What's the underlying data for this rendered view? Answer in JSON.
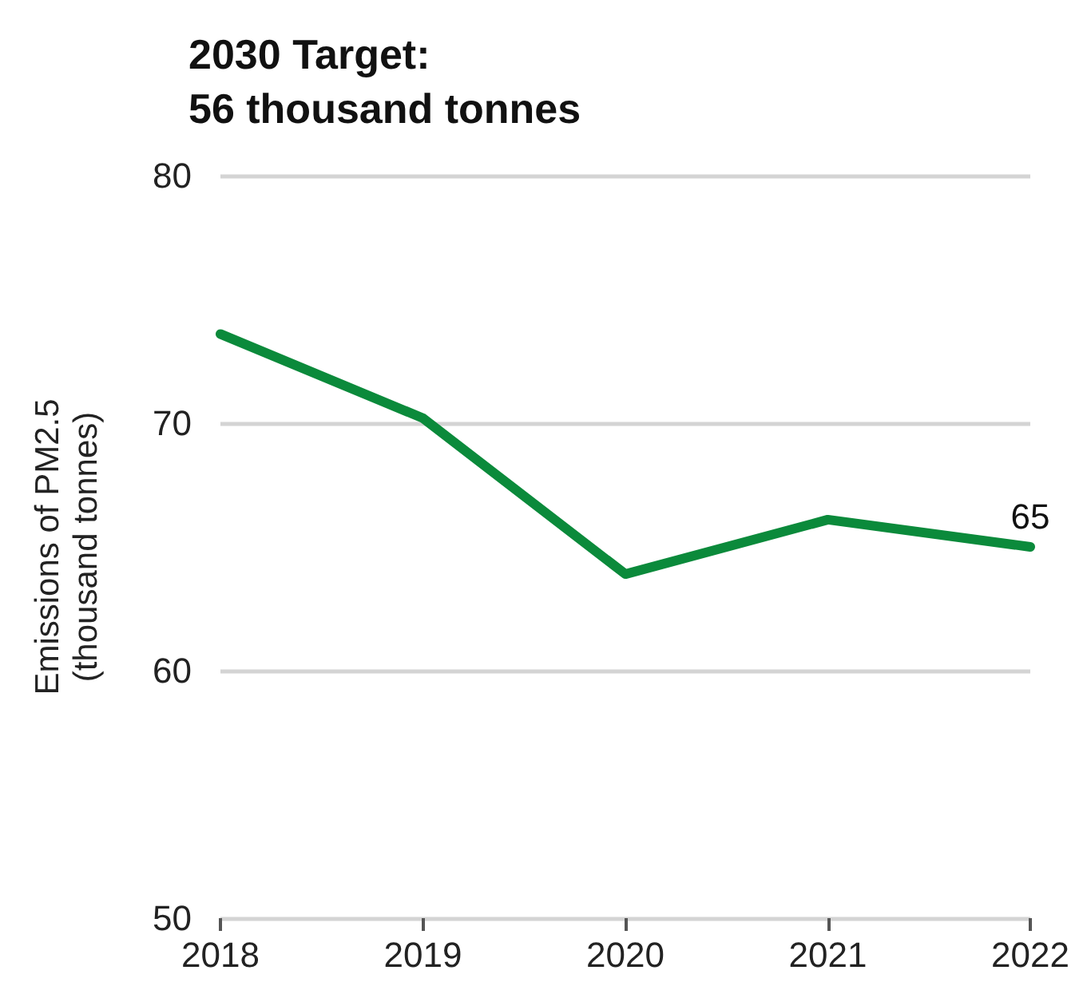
{
  "chart_data": {
    "type": "line",
    "title": "2030 Target:\n56 thousand tonnes",
    "ylabel": "Emissions of PM2.5\n(thousand tonnes)",
    "categories": [
      "2018",
      "2019",
      "2020",
      "2021",
      "2022"
    ],
    "series": [
      {
        "color": "#0b8a3b",
        "values": [
          73.6,
          70.2,
          63.9,
          66.1,
          65
        ],
        "value_labels": [
          null,
          null,
          null,
          null,
          "65"
        ]
      }
    ],
    "ylim": [
      50,
      80
    ],
    "yticks": [
      50,
      60,
      70,
      80
    ],
    "grid": "y",
    "legend": false,
    "marker": "none",
    "line_style": "solid"
  }
}
